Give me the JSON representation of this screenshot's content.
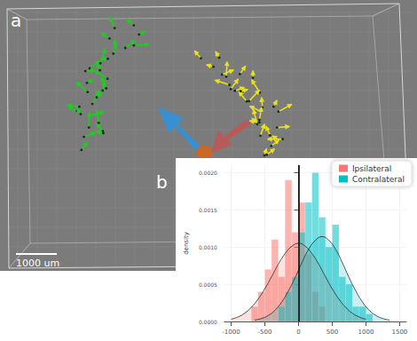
{
  "panel_labels": [
    "a",
    "b"
  ],
  "scale_bar_label": "1000 um",
  "chart_data": {
    "type": "histogram",
    "y_label": "density",
    "bins": [
      -700,
      -600,
      -500,
      -400,
      -300,
      -200,
      -100,
      0,
      100,
      200,
      300,
      400,
      500,
      600,
      700,
      800,
      900,
      1000,
      1100
    ],
    "series": [
      {
        "name": "Ipsilateral",
        "color": "#f8766d",
        "values": [
          0.0002,
          0.0004,
          0.0007,
          0.0011,
          0.0006,
          0.0019,
          0.0012,
          0.0016,
          0.0009,
          0.0004,
          0.0002,
          0,
          0,
          0,
          0,
          0,
          0,
          0
        ],
        "curve_x": [
          -1000,
          -900,
          -800,
          -700,
          -600,
          -500,
          -400,
          -300,
          -200,
          -100,
          0,
          100,
          200,
          300,
          400,
          500,
          600,
          700,
          800,
          900,
          1000
        ],
        "curve_y": [
          3e-05,
          6e-05,
          0.00011,
          0.00019,
          0.0003,
          0.00044,
          0.0006,
          0.00077,
          0.00091,
          0.00101,
          0.00105,
          0.00101,
          0.00091,
          0.00077,
          0.0006,
          0.00044,
          0.0003,
          0.00019,
          0.00011,
          6e-05,
          3e-05
        ]
      },
      {
        "name": "Contralateral",
        "color": "#00bfc4",
        "values": [
          0,
          0,
          0,
          0,
          0.0002,
          0.0004,
          0.0006,
          0.0012,
          0.0016,
          0.002,
          0.0014,
          0.001,
          0.0013,
          0.0006,
          0.0005,
          0.0002,
          0.0002,
          0.0001
        ],
        "curve_x": [
          -650,
          -550,
          -450,
          -350,
          -250,
          -150,
          -50,
          50,
          150,
          250,
          350,
          450,
          550,
          650,
          750,
          850,
          950,
          1050,
          1150,
          1250,
          1350
        ],
        "curve_y": [
          2e-05,
          4e-05,
          8e-05,
          0.00015,
          0.00026,
          0.00041,
          0.00059,
          0.00079,
          0.00097,
          0.00109,
          0.00114,
          0.00109,
          0.00097,
          0.00079,
          0.00059,
          0.00041,
          0.00026,
          0.00015,
          8e-05,
          4e-05,
          2e-05
        ]
      }
    ],
    "reference_line_x": 0,
    "xlim": [
      -1100,
      1600
    ],
    "xticks": [
      -1000,
      -500,
      0,
      500,
      1000,
      1500
    ],
    "ylim": [
      0,
      0.0021
    ],
    "yticks": [
      {
        "value": 0,
        "label": "0.0000"
      },
      {
        "value": 0.0005,
        "label": "0.0005"
      },
      {
        "value": 0.001,
        "label": "0.0010"
      },
      {
        "value": 0.0015,
        "label": "0.0015"
      },
      {
        "value": 0.002,
        "label": "0.0020"
      }
    ],
    "legend": "upper right",
    "grid": true
  }
}
